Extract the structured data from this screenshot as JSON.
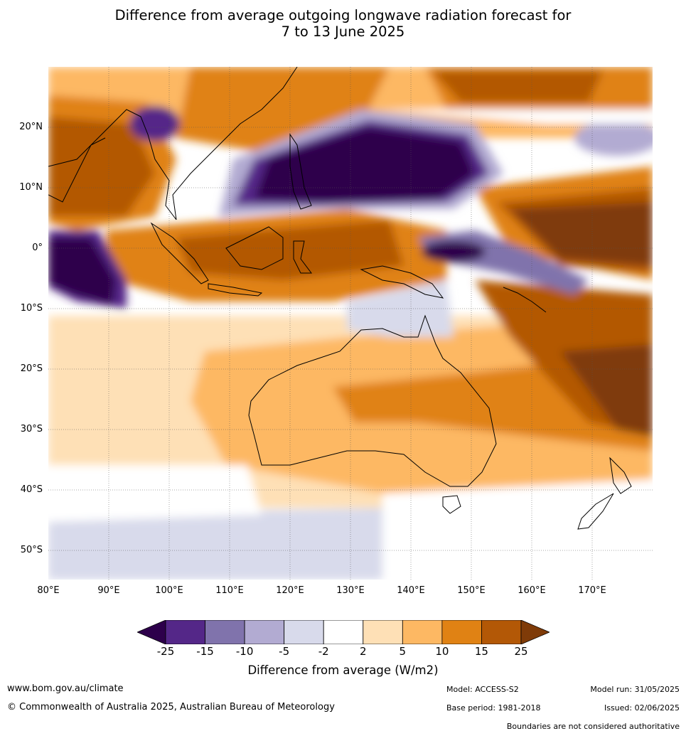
{
  "title_line1": "Difference from average outgoing longwave radiation forecast for",
  "title_line2": "7 to 13 June 2025",
  "lat_labels": [
    "20°N",
    "10°N",
    "0°",
    "10°S",
    "20°S",
    "30°S",
    "40°S",
    "50°S"
  ],
  "lon_labels": [
    "80°E",
    "90°E",
    "100°E",
    "110°E",
    "120°E",
    "130°E",
    "140°E",
    "150°E",
    "160°E",
    "170°E"
  ],
  "colorbar": {
    "ticks": [
      "-25",
      "-15",
      "-10",
      "-5",
      "-2",
      "2",
      "5",
      "10",
      "15",
      "25"
    ],
    "colors": [
      "#2d004b",
      "#542788",
      "#8073ac",
      "#b2abd2",
      "#d8daeb",
      "#ffffff",
      "#fee0b6",
      "#fdb863",
      "#e08214",
      "#b35806",
      "#7f3b08"
    ],
    "title": "Difference from average (W/m2)"
  },
  "footer": {
    "website": "www.bom.gov.au/climate",
    "copyright": "© Commonwealth of Australia 2025, Australian Bureau of Meteorology",
    "model": "Model: ACCESS-S2",
    "model_run": "Model run: 31/05/2025",
    "base_period": "Base period: 1981-2018",
    "issued": "Issued: 02/06/2025",
    "disclaimer": "Boundaries are not considered authoritative"
  }
}
